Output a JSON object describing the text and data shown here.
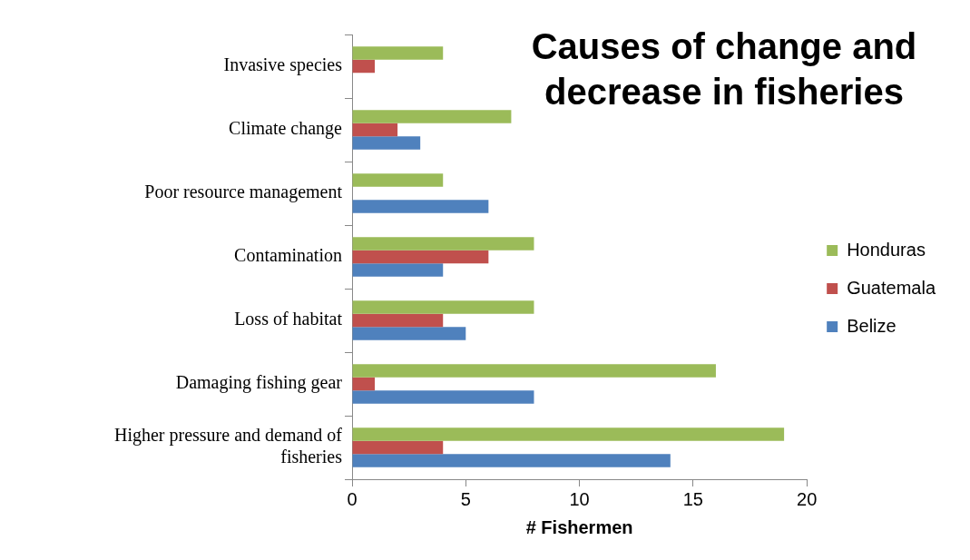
{
  "chart_data": {
    "type": "bar",
    "orientation": "horizontal",
    "title": "Causes of change and decrease in fisheries",
    "xlabel": "# Fishermen",
    "categories": [
      "Invasive species",
      "Climate change",
      "Poor resource management",
      "Contamination",
      "Loss of habitat",
      "Damaging fishing gear",
      "Higher pressure and demand of fisheries"
    ],
    "series": [
      {
        "name": "Honduras",
        "color": "#9bbb59",
        "values": [
          4,
          7,
          4,
          8,
          8,
          16,
          19
        ]
      },
      {
        "name": "Guatemala",
        "color": "#c0504d",
        "values": [
          1,
          2,
          0,
          6,
          4,
          1,
          4
        ]
      },
      {
        "name": "Belize",
        "color": "#4f81bd",
        "values": [
          0,
          3,
          6,
          4,
          5,
          8,
          14
        ]
      }
    ],
    "xlim": [
      0,
      20
    ],
    "xticks": [
      0,
      5,
      10,
      15,
      20
    ],
    "grid": false,
    "legend": "right"
  }
}
